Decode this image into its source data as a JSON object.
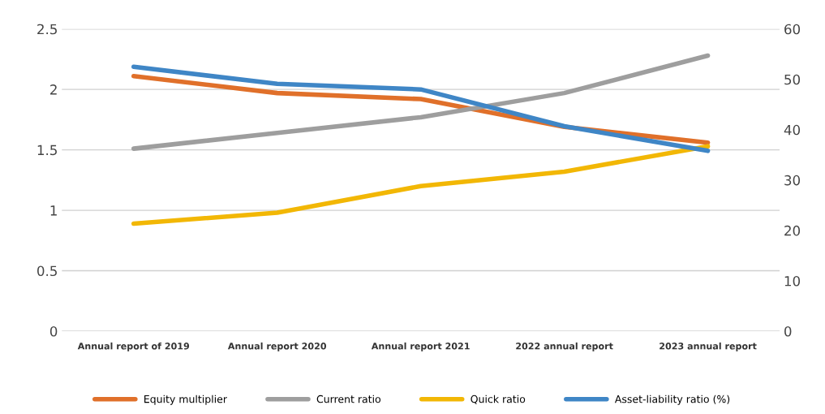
{
  "chart_data": {
    "type": "line",
    "categories": [
      "Annual report of 2019",
      "Annual report 2020",
      "Annual report 2021",
      "2022 annual report",
      "2023 annual report"
    ],
    "series": [
      {
        "name": "Equity multiplier",
        "color": "#e0702a",
        "values": [
          2.11,
          1.97,
          1.92,
          1.69,
          1.56
        ]
      },
      {
        "name": "Current ratio",
        "color": "#9e9e9e",
        "values": [
          1.51,
          1.64,
          1.77,
          1.97,
          2.28
        ]
      },
      {
        "name": "Quick ratio",
        "color": "#f2b705",
        "values": [
          0.89,
          0.98,
          1.2,
          1.32,
          1.53
        ]
      },
      {
        "name": "Asset-liability ratio (%)",
        "color": "#3f86c6",
        "axis": "y2",
        "values": [
          52.5,
          49.1,
          48.0,
          40.7,
          35.8
        ]
      }
    ],
    "ylim": [
      0,
      2.5
    ],
    "yticks": [
      0,
      0.5,
      1,
      1.5,
      2,
      2.5
    ],
    "y2lim": [
      0,
      60
    ],
    "y2ticks": [
      0,
      10,
      20,
      30,
      40,
      50,
      60
    ],
    "grid": "y",
    "legend": "bottom",
    "marker": "none",
    "line_style": "solid"
  }
}
